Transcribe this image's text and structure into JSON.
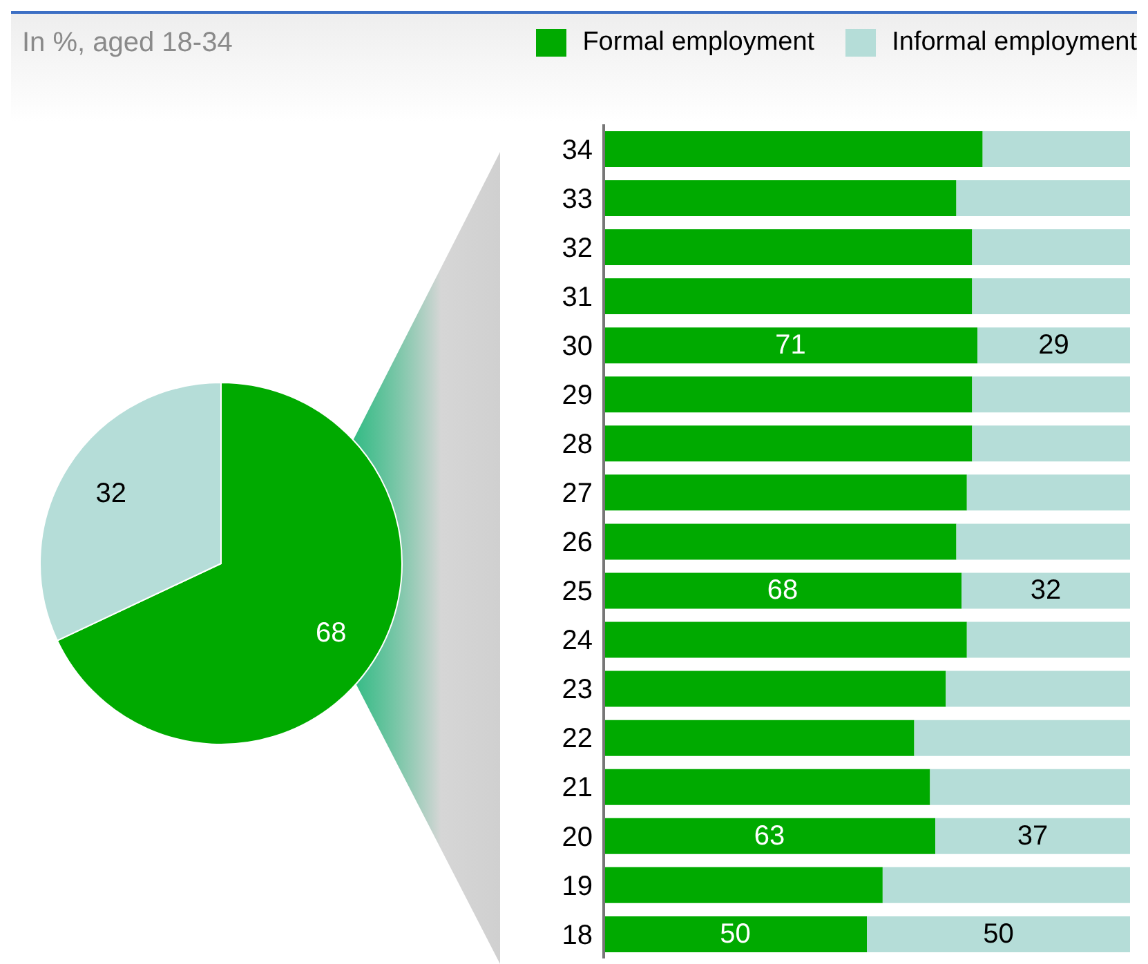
{
  "chart_data": [
    {
      "type": "pie",
      "title": "In %, aged 18-34",
      "categories": [
        null,
        null
      ],
      "values": [
        68,
        32
      ],
      "colors": [
        "#00aa00",
        "#b5ddd8"
      ],
      "data_labels": true
    },
    {
      "type": "bar",
      "orientation": "horizontal",
      "stacked": true,
      "categories": [
        "34",
        "33",
        "32",
        "31",
        "30",
        "29",
        "28",
        "27",
        "26",
        "25",
        "24",
        "23",
        "22",
        "21",
        "20",
        "19",
        "18"
      ],
      "xlim": [
        0,
        100
      ],
      "tick_labels": "y",
      "legend": "top",
      "series": [
        {
          "name": "Formal employment",
          "color": "#00aa00",
          "values": [
            72,
            67,
            70,
            70,
            71,
            70,
            70,
            69,
            67,
            68,
            69,
            65,
            59,
            62,
            63,
            53,
            50
          ],
          "value_labels": [
            null,
            null,
            null,
            null,
            "71",
            null,
            null,
            null,
            null,
            "68",
            null,
            null,
            null,
            null,
            "63",
            null,
            "50"
          ]
        },
        {
          "name": "Informal employment",
          "color": "#b5ddd8",
          "values": [
            28,
            33,
            30,
            30,
            29,
            30,
            30,
            31,
            33,
            32,
            31,
            35,
            41,
            38,
            37,
            47,
            50
          ],
          "value_labels": [
            null,
            null,
            null,
            null,
            "29",
            null,
            null,
            null,
            null,
            "32",
            null,
            null,
            null,
            null,
            "37",
            null,
            "50"
          ]
        }
      ]
    }
  ]
}
